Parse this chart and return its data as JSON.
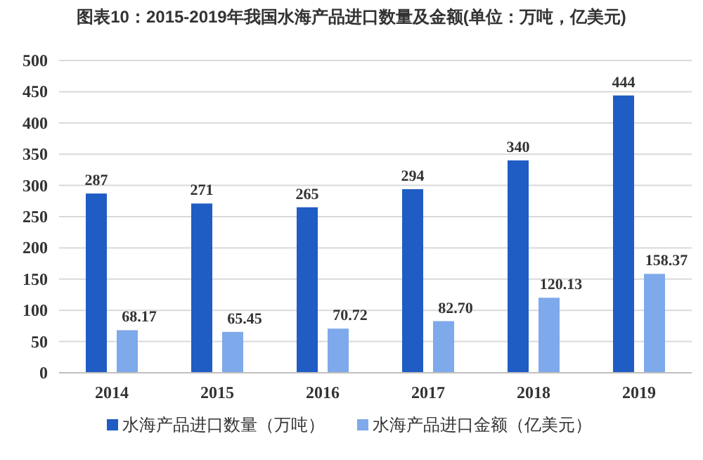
{
  "chart_data": {
    "type": "bar",
    "title": "图表10：2015-2019年我国水海产品进口数量及金额(单位：万吨，亿美元)",
    "categories": [
      "2014",
      "2015",
      "2016",
      "2017",
      "2018",
      "2019"
    ],
    "series": [
      {
        "name": "水海产品进口数量（万吨）",
        "color": "#1f5cc4",
        "values": [
          287,
          271,
          265,
          294,
          340,
          444
        ]
      },
      {
        "name": "水海产品进口金额（亿美元）",
        "color": "#7ea9ea",
        "values": [
          68.17,
          65.45,
          70.72,
          82.7,
          120.13,
          158.37
        ]
      }
    ],
    "value_labels": [
      [
        "287",
        "271",
        "265",
        "294",
        "340",
        "444"
      ],
      [
        "68.17",
        "65.45",
        "70.72",
        "82.70",
        "120.13",
        "158.37"
      ]
    ],
    "ylim": [
      0,
      500
    ],
    "yticks": [
      0,
      50,
      100,
      150,
      200,
      250,
      300,
      350,
      400,
      450,
      500
    ],
    "grid": "y",
    "legend": "bottom"
  }
}
